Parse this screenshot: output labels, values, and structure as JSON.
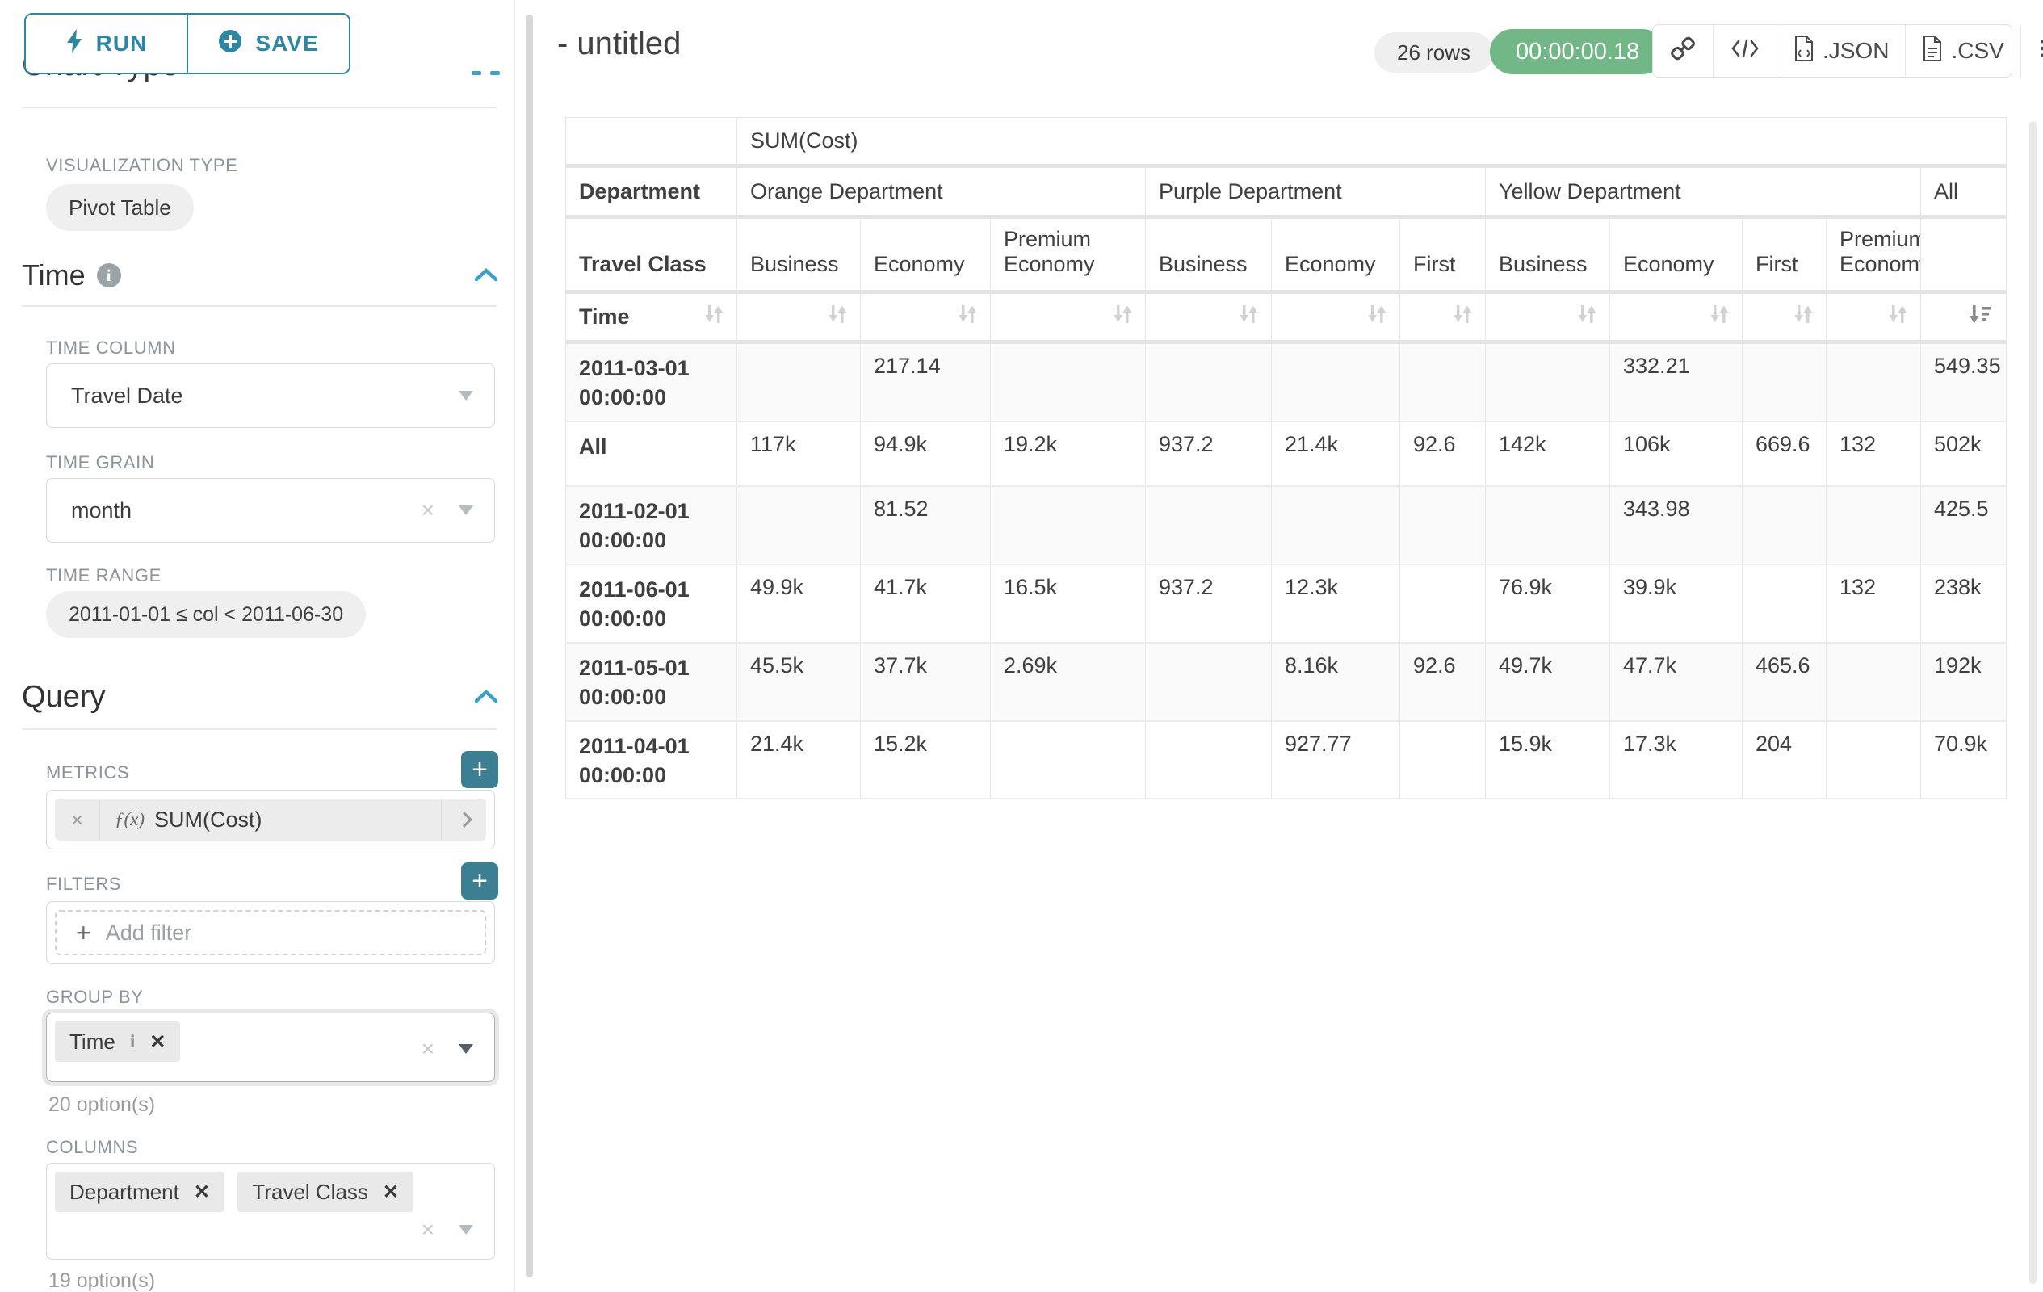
{
  "sidebar": {
    "run_button": "RUN",
    "save_button": "SAVE",
    "clipped_heading": "Chart Type",
    "visualization": {
      "label": "VISUALIZATION TYPE",
      "value": "Pivot Table"
    },
    "time_section": {
      "title": "Time",
      "time_column": {
        "label": "TIME COLUMN",
        "value": "Travel Date"
      },
      "time_grain": {
        "label": "TIME GRAIN",
        "value": "month"
      },
      "time_range": {
        "label": "TIME RANGE",
        "value": "2011-01-01 ≤ col < 2011-06-30"
      }
    },
    "query_section": {
      "title": "Query",
      "metrics": {
        "label": "METRICS",
        "fx": "ƒ(x)",
        "value": "SUM(Cost)"
      },
      "filters": {
        "label": "FILTERS",
        "placeholder": "Add filter"
      },
      "group_by": {
        "label": "GROUP BY",
        "tags": [
          "Time"
        ],
        "hint": "20 option(s)"
      },
      "columns": {
        "label": "COLUMNS",
        "tags": [
          "Department",
          "Travel Class"
        ],
        "hint": "19 option(s)"
      }
    }
  },
  "header": {
    "title": "- untitled",
    "row_count": "26 rows",
    "timer": "00:00:00.18",
    "export_json": ".JSON",
    "export_csv": ".CSV"
  },
  "icons": {
    "run": "bolt-icon",
    "save": "plus-circle-icon",
    "share": "chain-link-icon",
    "embed": "code-icon",
    "menu": "hamburger-icon",
    "sort_inactive": "sort-arrows-icon",
    "sort_active": "sort-descending-icon"
  },
  "colors": {
    "accent": "#2a87a5",
    "timer_green": "#72b887",
    "plus_button": "#3c7e92"
  },
  "chart_data": {
    "type": "table",
    "title": "SUM(Cost)",
    "corner": {
      "row2": "Department",
      "row3": "Travel Class",
      "row4": "Time"
    },
    "column_groups": [
      {
        "label": "Orange Department",
        "span": 3
      },
      {
        "label": "Purple Department",
        "span": 3
      },
      {
        "label": "Yellow Department",
        "span": 4
      },
      {
        "label": "All",
        "span": 1
      }
    ],
    "columns": [
      "Business",
      "Economy",
      "Premium Economy",
      "Business",
      "Economy",
      "First",
      "Business",
      "Economy",
      "First",
      "Premium Economy",
      ""
    ],
    "rows": [
      {
        "label": "2011-03-01 00:00:00",
        "values": [
          "",
          "217.14",
          "",
          "",
          "",
          "",
          "",
          "332.21",
          "",
          "",
          "549.35"
        ]
      },
      {
        "label": "All",
        "values": [
          "117k",
          "94.9k",
          "19.2k",
          "937.2",
          "21.4k",
          "92.6",
          "142k",
          "106k",
          "669.6",
          "132",
          "502k"
        ]
      },
      {
        "label": "2011-02-01 00:00:00",
        "values": [
          "",
          "81.52",
          "",
          "",
          "",
          "",
          "",
          "343.98",
          "",
          "",
          "425.5"
        ]
      },
      {
        "label": "2011-06-01 00:00:00",
        "values": [
          "49.9k",
          "41.7k",
          "16.5k",
          "937.2",
          "12.3k",
          "",
          "76.9k",
          "39.9k",
          "",
          "132",
          "238k"
        ]
      },
      {
        "label": "2011-05-01 00:00:00",
        "values": [
          "45.5k",
          "37.7k",
          "2.69k",
          "",
          "8.16k",
          "92.6",
          "49.7k",
          "47.7k",
          "465.6",
          "",
          "192k"
        ]
      },
      {
        "label": "2011-04-01 00:00:00",
        "values": [
          "21.4k",
          "15.2k",
          "",
          "",
          "927.77",
          "",
          "15.9k",
          "17.3k",
          "204",
          "",
          "70.9k"
        ]
      }
    ],
    "sorted_column": "All",
    "sort_direction": "descending"
  }
}
